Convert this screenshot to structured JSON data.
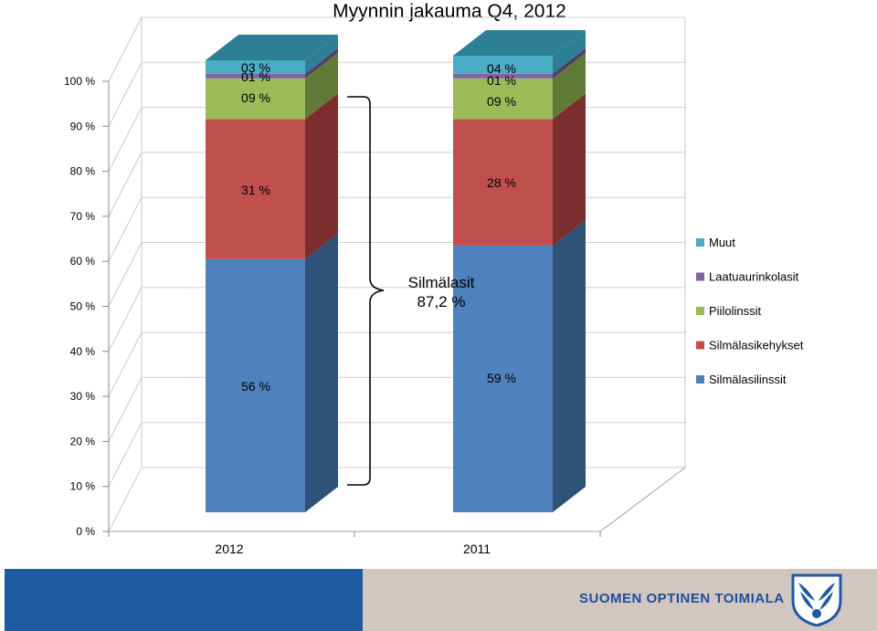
{
  "chart_data": {
    "type": "bar",
    "stacked": true,
    "percent": true,
    "title": "Myynnin jakauma Q4, 2012",
    "categories": [
      "2012",
      "2011"
    ],
    "yticks": [
      "0 %",
      "10 %",
      "20 %",
      "30 %",
      "40 %",
      "50 %",
      "60 %",
      "70 %",
      "80 %",
      "90 %",
      "100 %"
    ],
    "ylim": [
      0,
      100
    ],
    "series": [
      {
        "name": "Silmälasilinssit",
        "values": [
          56,
          59
        ],
        "labels": [
          "56 %",
          "59 %"
        ],
        "color": "#4f81bd",
        "side_color": "#2f5278"
      },
      {
        "name": "Silmälasikehykset",
        "values": [
          31,
          28
        ],
        "labels": [
          "31 %",
          "28 %"
        ],
        "color": "#c0504d",
        "side_color": "#7c2e2e"
      },
      {
        "name": "Piilolinssit",
        "values": [
          9,
          9
        ],
        "labels": [
          "09 %",
          "09 %"
        ],
        "color": "#9bbb59",
        "side_color": "#627a37"
      },
      {
        "name": "Laatuaurinkolasit",
        "values": [
          1,
          1
        ],
        "labels": [
          "01 %",
          "01 %"
        ],
        "color": "#8064a2",
        "side_color": "#4f3d66"
      },
      {
        "name": "Muut",
        "values": [
          3,
          4
        ],
        "labels": [
          "03 %",
          "04 %"
        ],
        "color": "#4bacc6",
        "side_color": "#2d7f96"
      }
    ],
    "annotation": {
      "line1": "Silmälasit",
      "line2": "87,2 %"
    },
    "legend": "right"
  },
  "footer": {
    "brand": "SUOMEN OPTINEN TOIMIALA",
    "colors": {
      "blue": "#1f5aa1",
      "gray": "#d2c6c0",
      "text": "#1b4f9c"
    },
    "logo_icon": "shield-wings-icon"
  }
}
